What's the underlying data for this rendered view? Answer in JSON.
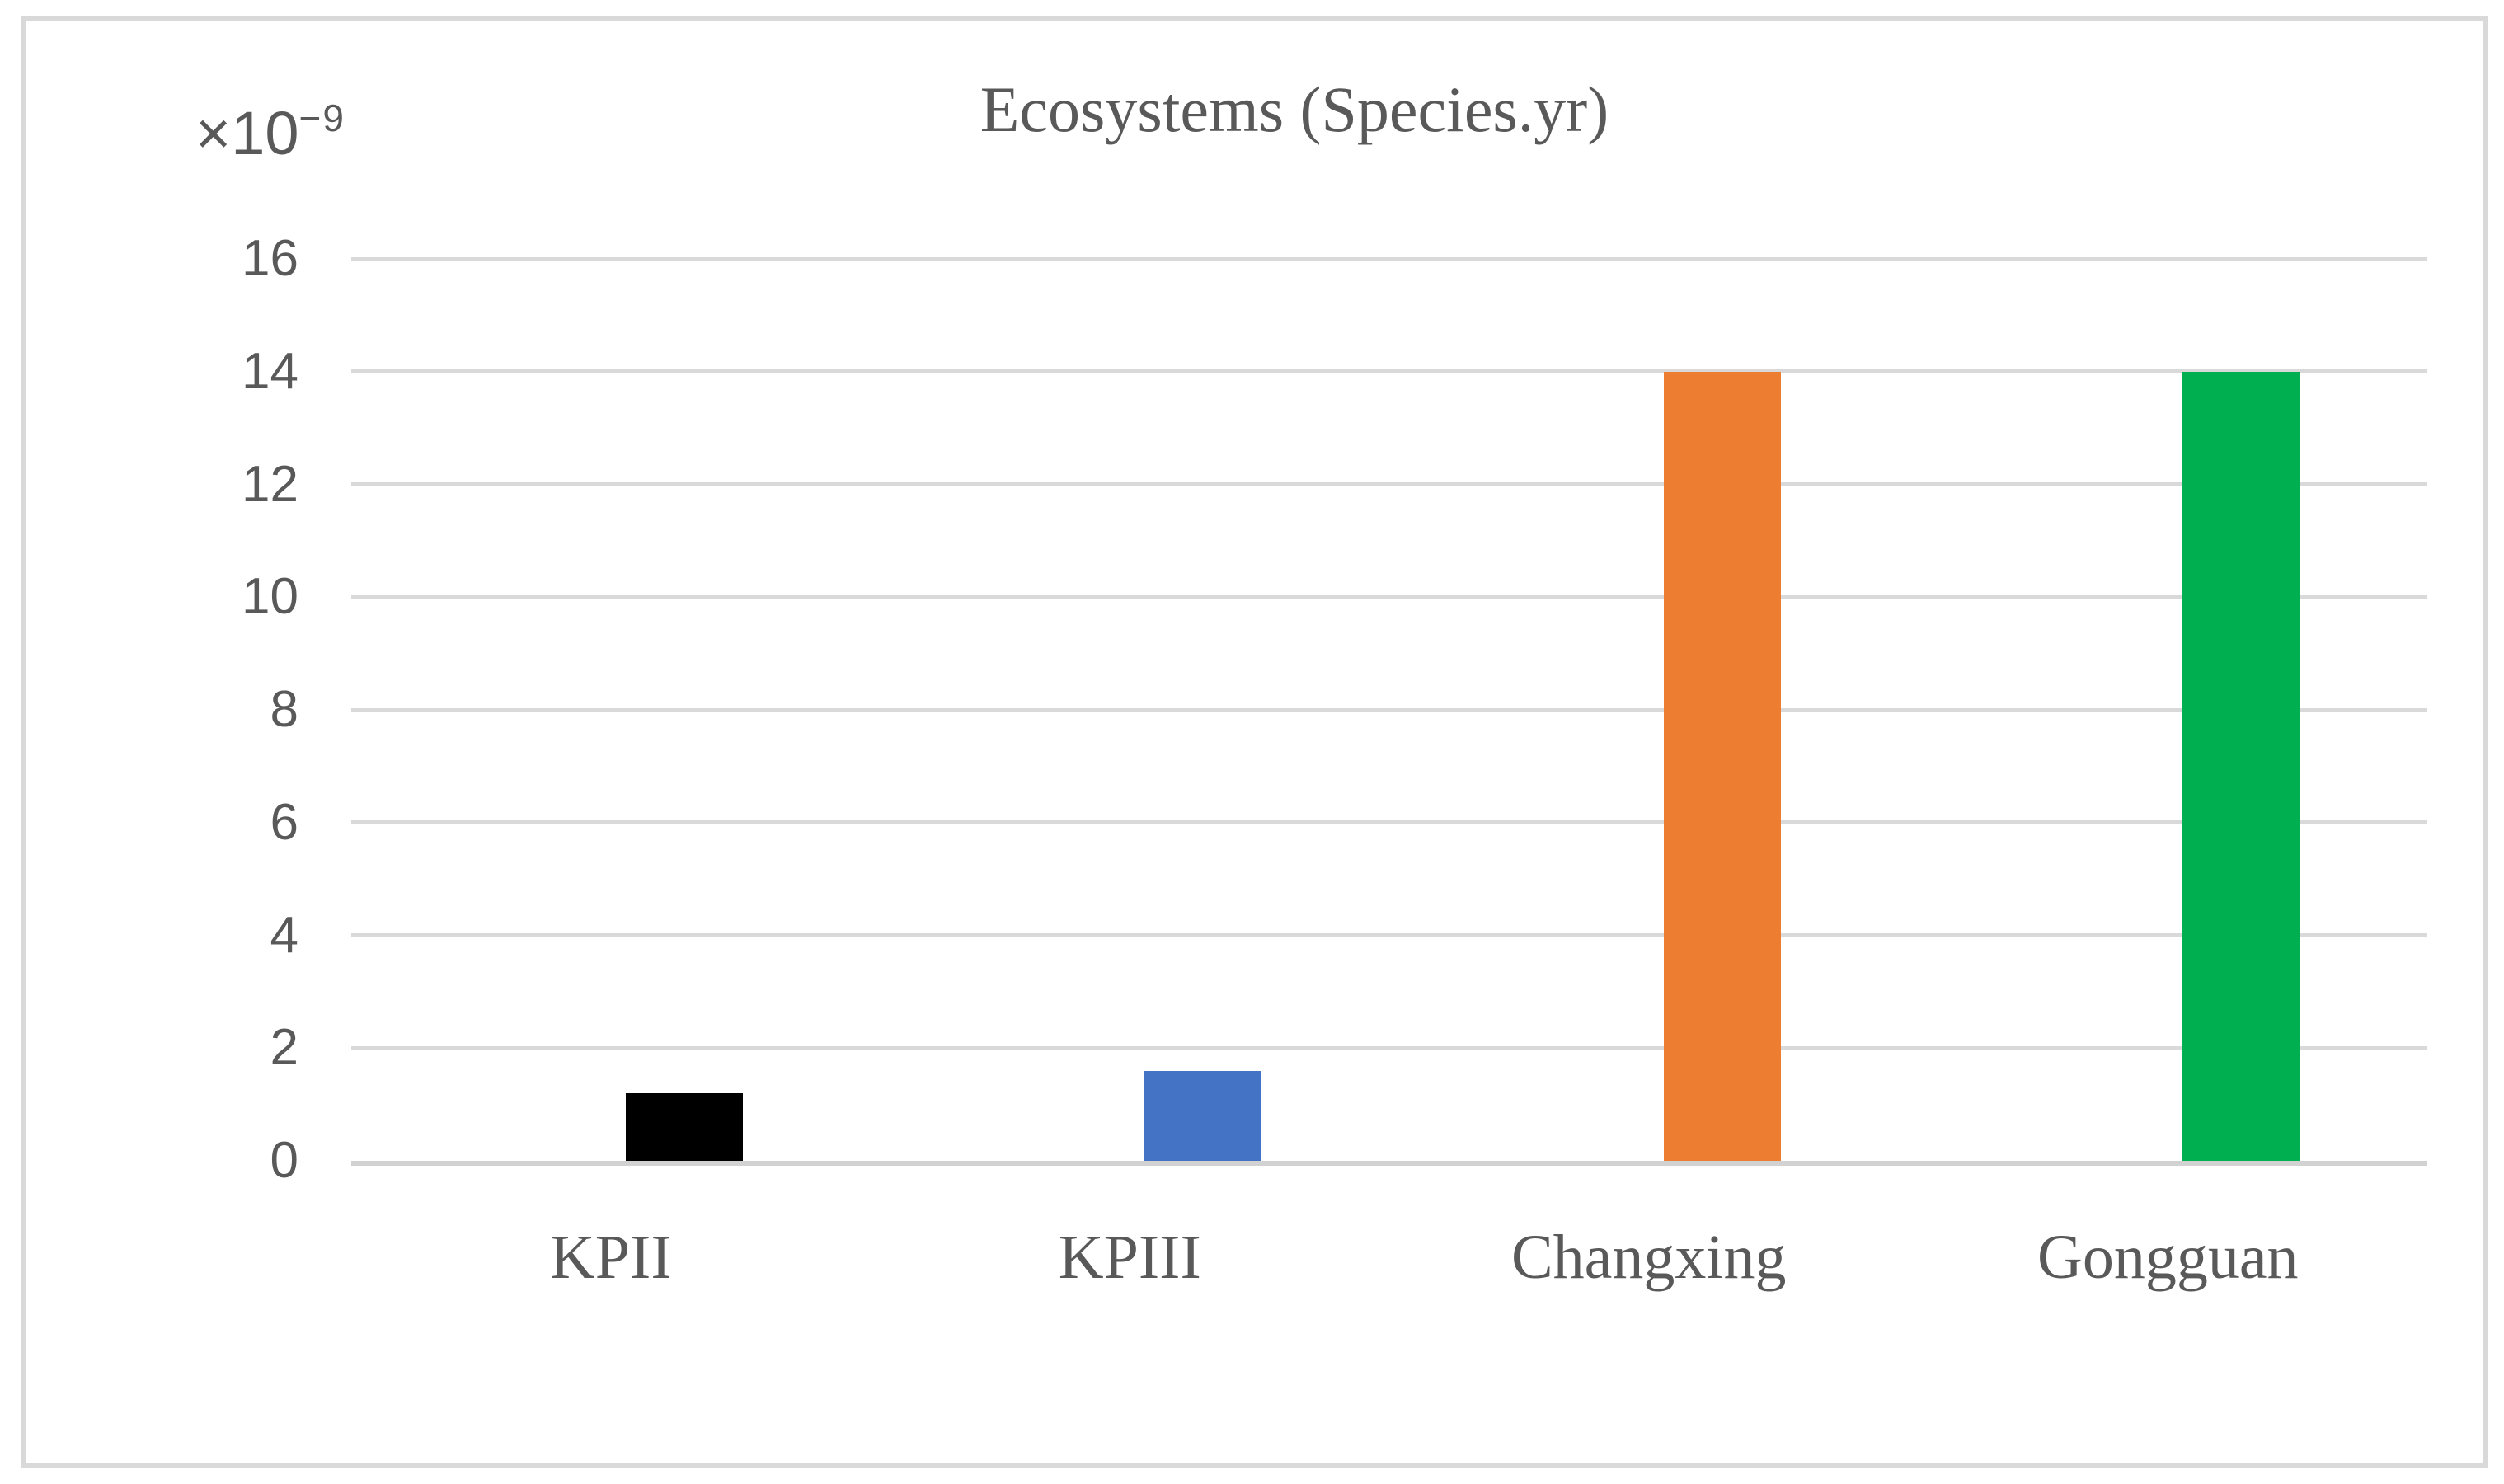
{
  "chart": {
    "title": "Ecosystems (Species.yr)",
    "unit_label": {
      "base": "×10",
      "exponent": "−9"
    }
  },
  "chart_data": {
    "type": "bar",
    "title": "Ecosystems (Species.yr)",
    "subtitle": "",
    "unit_multiplier_label": "×10−9",
    "categories": [
      "KPII",
      "KPIII",
      "Changxing",
      "Gongguan"
    ],
    "values": [
      1.2,
      1.6,
      14,
      14
    ],
    "bar_colors": [
      "#000000",
      "#4472C4",
      "#ED7D31",
      "#00B050"
    ],
    "xlabel": "",
    "ylabel": "",
    "ylim": [
      0,
      16
    ],
    "ytick_interval": 2,
    "yticks": [
      0,
      2,
      4,
      6,
      8,
      10,
      12,
      14,
      16
    ],
    "grid": true,
    "legend": "none"
  },
  "style_colors": {
    "text": "#595959",
    "gridline": "#D9D9D9",
    "axis_line": "#D2D2D2",
    "frame_border": "#D9D9D9",
    "background": "#FFFFFF"
  }
}
